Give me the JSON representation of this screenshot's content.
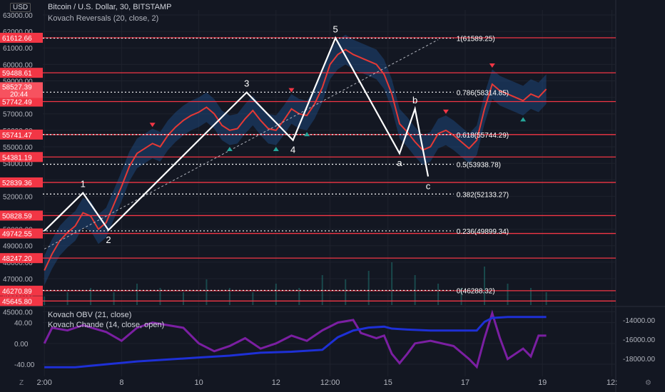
{
  "header": {
    "title": "Bitcoin / U.S. Dollar, 30, BITSTAMP",
    "subtitle": "Kovach Reversals (20, close, 2)",
    "currency": "USD",
    "indicator1": "Kovach OBV (21, close)",
    "indicator2": "Kovach Chande (14, close, open)",
    "corner_left": "Z",
    "corner_right": "⚙"
  },
  "chart_data": {
    "type": "line",
    "price_axis": {
      "ticks": [
        45000,
        46000,
        47000,
        48000,
        49000,
        50000,
        51000,
        52000,
        53000,
        54000,
        55000,
        56000,
        57000,
        58000,
        59000,
        60000,
        61000,
        62000,
        63000
      ],
      "tick_labels": [
        "45000.00",
        "46000.00",
        "47000.00",
        "48000.00",
        "49000.00",
        "50000.00",
        "51000.00",
        "52000.00",
        "53000.00",
        "54000.00",
        "55000.00",
        "56000.00",
        "57000.00",
        "58000.00",
        "59000.00",
        "60000.00",
        "61000.00",
        "62000.00",
        "63000.00"
      ],
      "range": [
        45400,
        63300
      ]
    },
    "x_axis": {
      "tick_labels": [
        "2:00",
        "8",
        "10",
        "12",
        "12:00",
        "15",
        "17",
        "19",
        "12:"
      ],
      "tick_positions": [
        0.0,
        1.0,
        2.0,
        3.0,
        3.7,
        4.45,
        5.45,
        6.45,
        7.35
      ],
      "range": [
        -0.02,
        7.4
      ]
    },
    "horizontal_levels": [
      {
        "price": 61612.66,
        "label": "61612.66"
      },
      {
        "price": 59488.61,
        "label": "59488.61"
      },
      {
        "price": 57742.49,
        "label": "57742.49"
      },
      {
        "price": 55741.47,
        "label": "55741.47"
      },
      {
        "price": 54381.19,
        "label": "54381.19"
      },
      {
        "price": 52839.36,
        "label": "52839.36"
      },
      {
        "price": 50828.59,
        "label": "50828.59"
      },
      {
        "price": 49742.55,
        "label": "49742.55"
      },
      {
        "price": 48247.2,
        "label": "48247.20"
      },
      {
        "price": 46270.89,
        "label": "46270.89"
      },
      {
        "price": 45645.8,
        "label": "45645.80"
      }
    ],
    "current_price": {
      "price": 58527.39,
      "label": "58527.39",
      "time": "20:44"
    },
    "fibonacci": [
      {
        "price": 61589.25,
        "label": "1(61589.25)"
      },
      {
        "price": 58314.85,
        "label": "0.786(58314.85)"
      },
      {
        "price": 55744.29,
        "label": "0.618(55744.29)"
      },
      {
        "price": 53938.78,
        "label": "0.5(53938.78)"
      },
      {
        "price": 52133.27,
        "label": "0.382(52133.27)"
      },
      {
        "price": 49899.34,
        "label": "0.236(49899.34)"
      },
      {
        "price": 46288.32,
        "label": "0(46288.32)"
      }
    ],
    "wave": {
      "points": [
        {
          "x": 0.0,
          "y": 49900,
          "label": ""
        },
        {
          "x": 0.5,
          "y": 52200,
          "label": "1"
        },
        {
          "x": 0.83,
          "y": 49950,
          "label": "2"
        },
        {
          "x": 2.62,
          "y": 58300,
          "label": "3"
        },
        {
          "x": 3.22,
          "y": 55400,
          "label": "4"
        },
        {
          "x": 3.77,
          "y": 61600,
          "label": "5"
        },
        {
          "x": 4.6,
          "y": 54600,
          "label": "a"
        },
        {
          "x": 4.8,
          "y": 57300,
          "label": "b"
        },
        {
          "x": 4.97,
          "y": 53200,
          "label": "c"
        }
      ]
    },
    "trendline": {
      "from": {
        "x": 0.0,
        "y": 48800
      },
      "to": {
        "x": 5.1,
        "y": 61500
      }
    },
    "price_series": {
      "x": [
        0.0,
        0.1,
        0.2,
        0.3,
        0.4,
        0.5,
        0.6,
        0.7,
        0.8,
        0.9,
        1.0,
        1.1,
        1.2,
        1.3,
        1.4,
        1.5,
        1.6,
        1.7,
        1.8,
        1.9,
        2.0,
        2.1,
        2.2,
        2.3,
        2.4,
        2.5,
        2.6,
        2.7,
        2.8,
        2.9,
        3.0,
        3.1,
        3.2,
        3.3,
        3.4,
        3.5,
        3.6,
        3.7,
        3.8,
        3.9,
        4.0,
        4.1,
        4.2,
        4.3,
        4.4,
        4.5,
        4.6,
        4.7,
        4.8,
        4.9,
        5.0,
        5.1,
        5.2,
        5.3,
        5.4,
        5.5,
        5.6,
        5.7,
        5.8,
        5.9,
        6.0,
        6.1,
        6.2,
        6.3,
        6.4,
        6.5
      ],
      "y": [
        47500,
        48500,
        49300,
        49800,
        50200,
        51000,
        50800,
        50000,
        50400,
        51500,
        52600,
        53800,
        54600,
        54900,
        55200,
        55000,
        55700,
        56200,
        56600,
        56900,
        57100,
        57400,
        57000,
        56300,
        56000,
        56100,
        56700,
        57200,
        56600,
        56100,
        56000,
        56600,
        57300,
        57000,
        56900,
        57600,
        58600,
        60000,
        60600,
        60900,
        60600,
        60400,
        60200,
        60000,
        59400,
        58200,
        56400,
        55900,
        55300,
        54800,
        55000,
        55800,
        56000,
        55700,
        55300,
        54900,
        55400,
        57300,
        58800,
        58400,
        58200,
        58000,
        57800,
        58200,
        58000,
        58500
      ]
    },
    "obv_axis": {
      "ticks": [
        -14000,
        -16000,
        -18000
      ],
      "tick_labels": [
        "-14000.00",
        "-16000.00",
        "-18000.00"
      ],
      "range": [
        -19400,
        -13200
      ]
    },
    "chande_axis": {
      "ticks": [
        40,
        0,
        -40
      ],
      "tick_labels": [
        "40.00",
        "0.00",
        "-40.00"
      ],
      "range": [
        -55,
        60
      ]
    },
    "obv_series": {
      "x": [
        0.0,
        0.4,
        0.8,
        1.2,
        1.6,
        2.0,
        2.4,
        2.8,
        3.2,
        3.6,
        3.8,
        4.0,
        4.2,
        4.4,
        4.5,
        4.7,
        5.0,
        5.4,
        5.6,
        5.7,
        5.8,
        6.0,
        6.5
      ],
      "y": [
        -18900,
        -18900,
        -18600,
        -18300,
        -18100,
        -17900,
        -17700,
        -17400,
        -17300,
        -17100,
        -15800,
        -15100,
        -14800,
        -14700,
        -14900,
        -15000,
        -15100,
        -15100,
        -15100,
        -14200,
        -13800,
        -13700,
        -13700
      ]
    },
    "chande_series": {
      "x": [
        0.0,
        0.1,
        0.3,
        0.5,
        0.8,
        1.0,
        1.2,
        1.4,
        1.6,
        1.8,
        2.0,
        2.2,
        2.4,
        2.6,
        2.8,
        3.0,
        3.2,
        3.4,
        3.6,
        3.8,
        4.0,
        4.1,
        4.3,
        4.4,
        4.5,
        4.6,
        4.7,
        4.8,
        5.0,
        5.3,
        5.5,
        5.6,
        5.7,
        5.8,
        5.9,
        6.0,
        6.2,
        6.3,
        6.4,
        6.5
      ],
      "y": [
        0,
        30,
        25,
        35,
        22,
        5,
        30,
        40,
        35,
        30,
        0,
        -15,
        -5,
        10,
        -10,
        0,
        15,
        5,
        25,
        40,
        45,
        20,
        10,
        15,
        -20,
        -38,
        -20,
        0,
        5,
        -5,
        -30,
        -45,
        10,
        58,
        10,
        -30,
        -10,
        -25,
        15,
        15
      ]
    },
    "volume_series": {
      "x": [
        0.0,
        0.3,
        0.6,
        0.9,
        1.2,
        1.5,
        1.8,
        2.1,
        2.4,
        2.7,
        3.0,
        3.3,
        3.6,
        3.9,
        4.2,
        4.5,
        4.8,
        5.1,
        5.4,
        5.7,
        6.0,
        6.3,
        6.5
      ],
      "y": [
        0.2,
        0.3,
        0.4,
        0.3,
        0.5,
        0.4,
        0.3,
        0.6,
        0.4,
        0.3,
        0.5,
        0.4,
        0.7,
        0.6,
        0.8,
        1.0,
        0.7,
        0.5,
        0.4,
        0.9,
        0.5,
        0.4,
        0.3
      ]
    }
  }
}
